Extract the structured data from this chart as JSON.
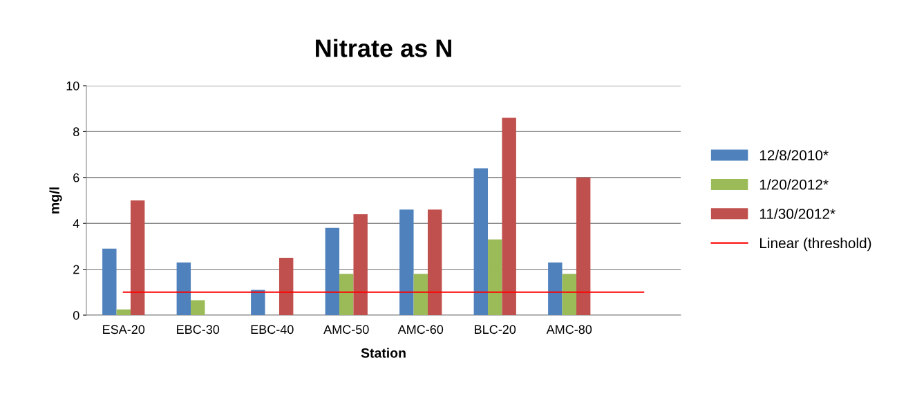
{
  "chart_data": {
    "type": "bar",
    "title": "Nitrate as N",
    "xlabel": "Station",
    "ylabel": "mg/l",
    "categories": [
      "ESA-20",
      "EBC-30",
      "EBC-40",
      "AMC-50",
      "AMC-60",
      "BLC-20",
      "AMC-80",
      null
    ],
    "series": [
      {
        "name": "12/8/2010*",
        "color": "#4f81bd",
        "values": [
          2.9,
          2.3,
          1.1,
          3.8,
          4.6,
          6.4,
          2.3,
          null
        ]
      },
      {
        "name": "1/20/2012*",
        "color": "#9bbb59",
        "values": [
          0.25,
          0.65,
          null,
          1.8,
          1.8,
          3.3,
          1.8,
          null
        ]
      },
      {
        "name": "11/30/2012*",
        "color": "#c0504d",
        "values": [
          5.0,
          null,
          2.5,
          4.4,
          4.6,
          8.6,
          6.0,
          null
        ]
      },
      {
        "name": "Linear (threshold)",
        "type": "line",
        "color": "#ff0000",
        "values": [
          1,
          1,
          1,
          1,
          1,
          1,
          1,
          1
        ]
      }
    ],
    "ylim": [
      0,
      10
    ],
    "yticks": [
      0,
      2,
      4,
      6,
      8,
      10
    ],
    "grid": "y",
    "legend": "right",
    "marker": "none"
  }
}
